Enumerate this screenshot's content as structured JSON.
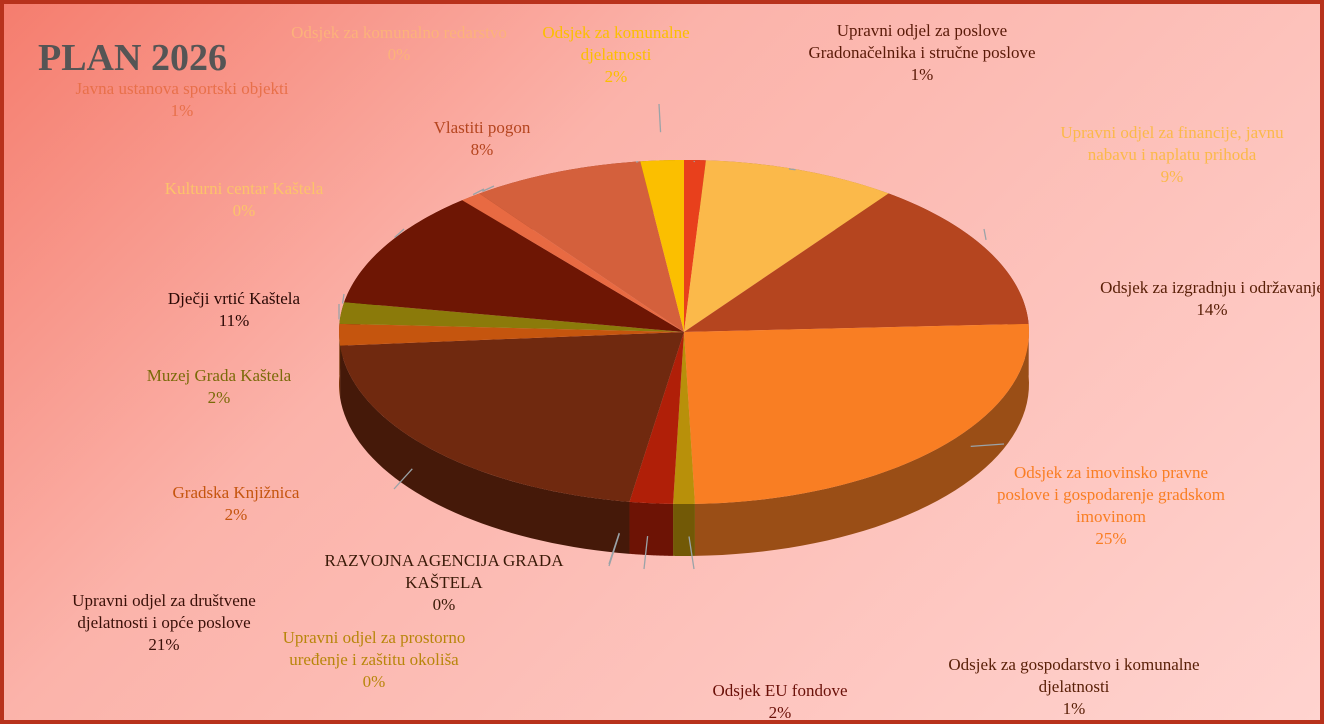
{
  "chart_data": {
    "type": "pie",
    "title": "PLAN 2026",
    "categories": [
      "Upravni odjel za poslove Gradonačelnika i stručne poslove",
      "Upravni odjel za financije, javnu nabavu i naplatu prihoda",
      "Odsjek za izgradnju i održavanje",
      "Odsjek za imovinsko pravne poslove i gospodarenje gradskom imovinom",
      "Odsjek za gospodarstvo i komunalne djelatnosti",
      "Odsjek  EU fondove",
      "Upravni odjel za prostorno uređenje i zaštitu okoliša",
      "RAZVOJNA AGENCIJA GRADA KAŠTELA",
      "Upravni odjel za društvene djelatnosti i opće poslove",
      "Gradska Knjižnica",
      "Muzej Grada Kaštela",
      "Dječji vrtić Kaštela",
      "Kulturni centar Kaštela",
      "Javna ustanova sportski objekti",
      "Vlastiti pogon",
      "Odsjek za komunalno redarstvo",
      "Odsjek za komunalne djelatnosti"
    ],
    "values": [
      1,
      9,
      14,
      25,
      1,
      2,
      0,
      0,
      21,
      2,
      2,
      11,
      0,
      1,
      8,
      0,
      2
    ],
    "value_labels": [
      "1%",
      "9%",
      "14%",
      "25%",
      "1%",
      "2%",
      "0%",
      "0%",
      "21%",
      "2%",
      "2%",
      "11%",
      "0%",
      "1%",
      "8%",
      "0%",
      "2%"
    ],
    "colors": [
      "#e8401c",
      "#fbb94a",
      "#b5451f",
      "#f97e23",
      "#b8900a",
      "#b01f08",
      "#c77f00",
      "#d9a040",
      "#70290f",
      "#c5550e",
      "#8b7a0a",
      "#6e1604",
      "#f4a070",
      "#e86a42",
      "#d4603c",
      "#f7b080",
      "#fbbf00"
    ]
  }
}
